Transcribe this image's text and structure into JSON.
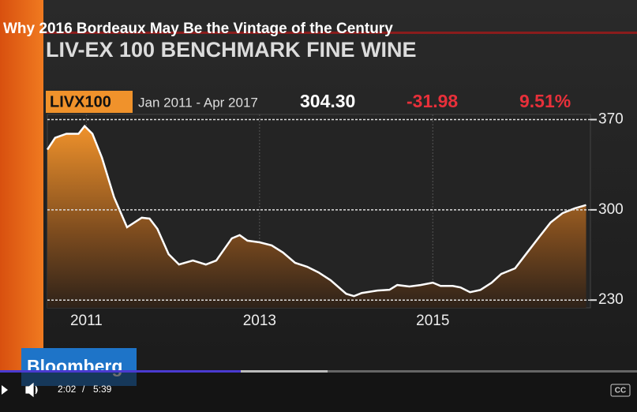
{
  "video": {
    "title": "Why 2016 Bordeaux May Be the Vintage of the Century",
    "brand": "Bloomberg",
    "time_current": "2:02",
    "time_total": "5:39",
    "captions": "CC"
  },
  "chart_data": {
    "type": "area",
    "title": "LIV-EX 100 BENCHMARK FINE WINE",
    "ticker": "LIVX100",
    "period": "Jan 2011 - Apr 2017",
    "last": "304.30",
    "change": "-31.98",
    "change_pct": "9.51%",
    "color": "#f0922b",
    "line_color": "#ffffff",
    "grid": true,
    "x": [
      2010.55,
      2010.64,
      2010.77,
      2010.91,
      2010.98,
      2011.07,
      2011.18,
      2011.32,
      2011.47,
      2011.64,
      2011.73,
      2011.82,
      2011.95,
      2012.07,
      2012.23,
      2012.38,
      2012.5,
      2012.68,
      2012.77,
      2012.86,
      2013,
      2013.14,
      2013.27,
      2013.41,
      2013.55,
      2013.68,
      2013.82,
      2014,
      2014.09,
      2014.18,
      2014.36,
      2014.5,
      2014.59,
      2014.73,
      2014.86,
      2015,
      2015.09,
      2015.23,
      2015.32,
      2015.43,
      2015.55,
      2015.68,
      2015.79,
      2015.95,
      2016.09,
      2016.23,
      2016.36,
      2016.5,
      2016.64,
      2016.77
    ],
    "values": [
      346.7,
      355.9,
      359,
      359,
      365,
      359,
      340.5,
      309.8,
      286.5,
      293.9,
      293.2,
      285.3,
      265.6,
      257.6,
      260.7,
      257.6,
      260.7,
      277.9,
      280.4,
      276.1,
      274.8,
      272.4,
      266.9,
      258.9,
      255.8,
      251.5,
      245.4,
      234.9,
      233.1,
      235.5,
      237.4,
      238,
      241.7,
      240.5,
      241.7,
      243.5,
      241,
      241,
      239.8,
      236.1,
      237.9,
      243.5,
      250.3,
      254.6,
      266.9,
      279.1,
      290.2,
      297.5,
      301.2,
      303.7
    ],
    "xlim": [
      2010.55,
      2016.82
    ],
    "xticks": [
      2011,
      2013,
      2015
    ],
    "ylim": [
      224,
      374
    ],
    "yticks": [
      230,
      300,
      370
    ]
  }
}
